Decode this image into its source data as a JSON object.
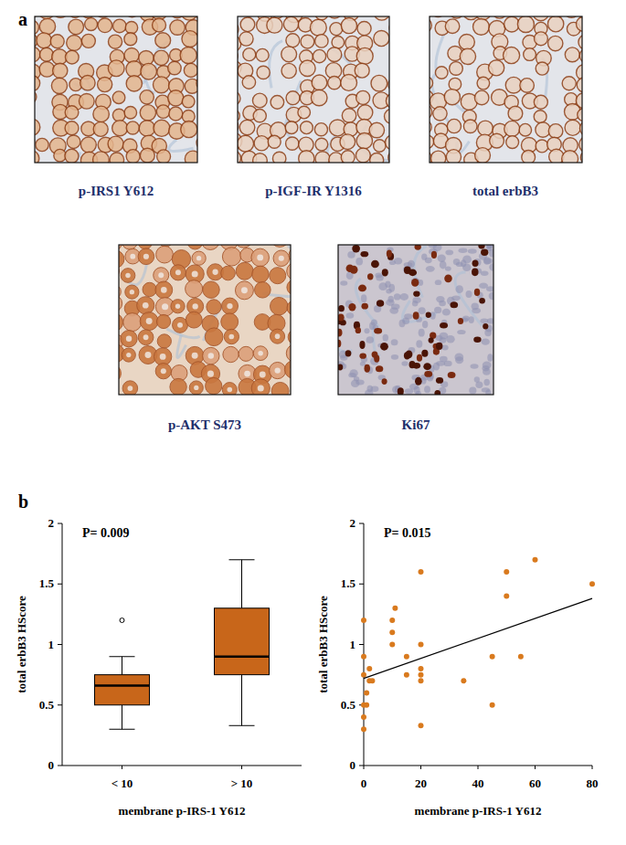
{
  "panel_a": {
    "label": "a",
    "images": [
      {
        "caption": "p-IRS1 Y612"
      },
      {
        "caption": "p-IGF-IR Y1316"
      },
      {
        "caption": "total erbB3"
      },
      {
        "caption": "p-AKT S473"
      },
      {
        "caption": "Ki67"
      }
    ]
  },
  "panel_b": {
    "label": "b"
  },
  "chart_data": [
    {
      "type": "box",
      "annotation": "P= 0.009",
      "x_label": "membrane p-IRS-1 Y612",
      "y_label": "total erbB3 HScore",
      "categories": [
        "< 10",
        "> 10"
      ],
      "boxes": [
        {
          "min": 0.3,
          "q1": 0.5,
          "median": 0.66,
          "q3": 0.75,
          "max": 0.9,
          "outliers": [
            1.2
          ]
        },
        {
          "min": 0.33,
          "q1": 0.75,
          "median": 0.9,
          "q3": 1.3,
          "max": 1.7,
          "outliers": []
        }
      ],
      "color": "#c8661a",
      "ylim": [
        0,
        2
      ],
      "yticks": [
        0,
        0.5,
        1,
        1.5,
        2
      ]
    },
    {
      "type": "scatter",
      "annotation": "P= 0.015",
      "x_label": "membrane p-IRS-1 Y612",
      "y_label": "total erbB3 HScore",
      "x": [
        0,
        0,
        0,
        0,
        0,
        0,
        1,
        1,
        2,
        2,
        3,
        10,
        10,
        10,
        11,
        15,
        15,
        20,
        20,
        20,
        20,
        20,
        20,
        35,
        45,
        45,
        50,
        50,
        55,
        60,
        80
      ],
      "values": [
        1.2,
        0.9,
        0.75,
        0.5,
        0.4,
        0.3,
        0.6,
        0.5,
        0.8,
        0.7,
        0.7,
        1.2,
        1.1,
        1.0,
        1.3,
        0.9,
        0.75,
        1.6,
        1.0,
        0.8,
        0.75,
        0.7,
        0.33,
        0.7,
        0.9,
        0.5,
        1.6,
        1.4,
        0.9,
        1.7,
        1.5
      ],
      "trend_line": {
        "x": [
          0,
          80
        ],
        "values": [
          0.72,
          1.38
        ]
      },
      "color": "#d97a1e",
      "marker": "circle",
      "xlim": [
        0,
        80
      ],
      "xticks": [
        0,
        20,
        40,
        60,
        80
      ],
      "ylim": [
        0,
        2
      ],
      "yticks": [
        0,
        0.5,
        1,
        1.5,
        2
      ]
    }
  ]
}
